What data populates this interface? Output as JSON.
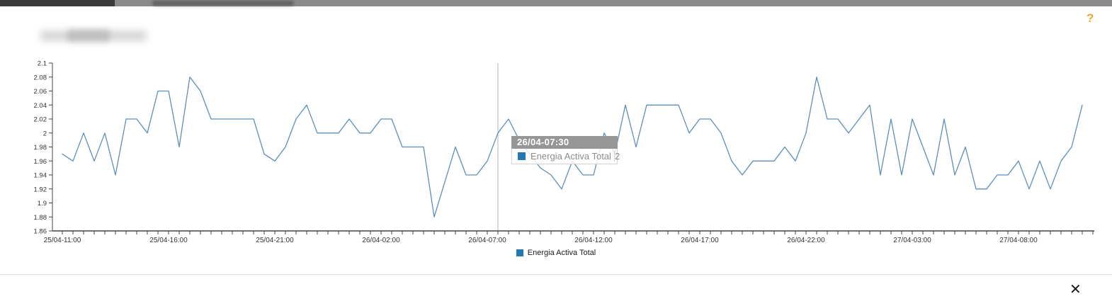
{
  "window": {
    "help_icon": "?",
    "close_icon": "✕"
  },
  "colors": {
    "accent_orange": "#f0a63a",
    "line_blue": "#5d8fbb",
    "marker_blue": "#2579b2",
    "tooltip_header_bg": "#969696",
    "cursor_gray": "#b5b5b5",
    "axis_color": "#444444"
  },
  "tooltip": {
    "title": "26/04-07:30",
    "series_label": "Energia Activa Total",
    "value": "2"
  },
  "legend": {
    "label": "Energia Activa Total"
  },
  "chart_data": {
    "type": "line",
    "title": "",
    "xlabel": "",
    "ylabel": "",
    "grid": false,
    "legend_position": "bottom-center",
    "x_axis": {
      "start": "25/04-11:00",
      "end": "27/04-11:00",
      "interval_minutes": 30,
      "point_count": 97,
      "major_label_every": 10,
      "major_tick_labels": [
        "25/04-11:00",
        "25/04-16:00",
        "25/04-21:00",
        "26/04-02:00",
        "26/04-07:00",
        "26/04-12:00",
        "26/04-17:00",
        "26/04-22:00",
        "27/04-03:00",
        "27/04-08:00"
      ]
    },
    "y_axis": {
      "min": 1.86,
      "max": 2.1,
      "step": 0.02
    },
    "cursor_index": 41,
    "series": [
      {
        "name": "Energia Activa Total",
        "color": "#5d8fbb",
        "values": [
          1.97,
          1.96,
          2.0,
          1.96,
          2.0,
          1.94,
          2.02,
          2.02,
          2.0,
          2.06,
          2.06,
          1.98,
          2.08,
          2.06,
          2.02,
          2.02,
          2.02,
          2.02,
          2.02,
          1.97,
          1.96,
          1.98,
          2.02,
          2.04,
          2.0,
          2.0,
          2.0,
          2.02,
          2.0,
          2.0,
          2.02,
          2.02,
          1.98,
          1.98,
          1.98,
          1.88,
          1.93,
          1.98,
          1.94,
          1.94,
          1.96,
          2.0,
          2.02,
          1.99,
          1.97,
          1.95,
          1.94,
          1.92,
          1.96,
          1.94,
          1.94,
          2.0,
          1.97,
          2.04,
          1.98,
          2.04,
          2.04,
          2.04,
          2.04,
          2.0,
          2.02,
          2.02,
          2.0,
          1.96,
          1.94,
          1.96,
          1.96,
          1.96,
          1.98,
          1.96,
          2.0,
          2.08,
          2.02,
          2.02,
          2.0,
          2.02,
          2.04,
          1.94,
          2.02,
          1.94,
          2.02,
          1.98,
          1.94,
          2.02,
          1.94,
          1.98,
          1.92,
          1.92,
          1.94,
          1.94,
          1.96,
          1.92,
          1.96,
          1.92,
          1.96,
          1.98,
          2.04
        ]
      }
    ]
  }
}
